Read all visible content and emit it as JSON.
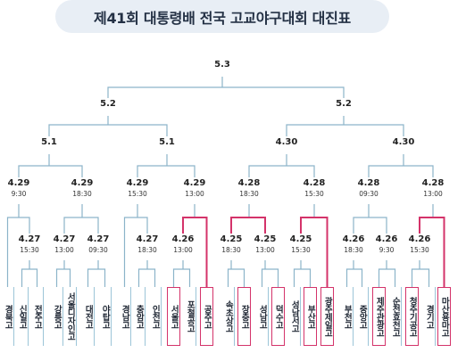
{
  "title": "제41회 대통령배 전국 고교야구대회 대진표",
  "colors": {
    "line": "#8cb4c9",
    "highlight": "#d4336a",
    "title_bg": "#e8eef5"
  },
  "final": {
    "date": "5.3",
    "time": ""
  },
  "semifinals": [
    {
      "date": "5.2",
      "time": ""
    },
    {
      "date": "5.2",
      "time": ""
    }
  ],
  "quarterfinals": [
    {
      "date": "5.1",
      "time": ""
    },
    {
      "date": "5.1",
      "time": ""
    },
    {
      "date": "4.30",
      "time": ""
    },
    {
      "date": "4.30",
      "time": ""
    }
  ],
  "round16": [
    {
      "date": "4.29",
      "time": "9:30"
    },
    {
      "date": "4.29",
      "time": "18:30"
    },
    {
      "date": "4.29",
      "time": "15:30"
    },
    {
      "date": "4.29",
      "time": "13:00"
    },
    {
      "date": "4.28",
      "time": "18:30"
    },
    {
      "date": "4.28",
      "time": "15:30"
    },
    {
      "date": "4.28",
      "time": "09:30"
    },
    {
      "date": "4.28",
      "time": "13:00"
    }
  ],
  "round32": [
    {
      "date": "4.27",
      "time": "15:30"
    },
    {
      "date": "4.27",
      "time": "13:00"
    },
    {
      "date": "4.27",
      "time": "09:30"
    },
    {
      "date": "4.27",
      "time": "18:30"
    },
    {
      "date": "4.26",
      "time": "13:00"
    },
    {
      "date": "4.25",
      "time": "18:30"
    },
    {
      "date": "4.25",
      "time": "13:00"
    },
    {
      "date": "4.25",
      "time": "15:30"
    },
    {
      "date": "4.26",
      "time": "18:30"
    },
    {
      "date": "4.26",
      "time": "9:30"
    },
    {
      "date": "4.26",
      "time": "15:30"
    }
  ],
  "teams": [
    {
      "name": "경북고",
      "highlight": false
    },
    {
      "name": "신일고",
      "highlight": false
    },
    {
      "name": "전주고",
      "highlight": false
    },
    {
      "name": "강릉고",
      "highlight": false
    },
    {
      "name": "서울디자인고",
      "highlight": false
    },
    {
      "name": "대전고",
      "highlight": false
    },
    {
      "name": "야탑고",
      "highlight": false
    },
    {
      "name": "경남고",
      "highlight": false
    },
    {
      "name": "충암고",
      "highlight": false
    },
    {
      "name": "인천고",
      "highlight": false
    },
    {
      "name": "서울고",
      "highlight": true
    },
    {
      "name": "포철공고",
      "highlight": false
    },
    {
      "name": "공주고",
      "highlight": true
    },
    {
      "name": "속초상고",
      "highlight": false
    },
    {
      "name": "장충고",
      "highlight": true
    },
    {
      "name": "성남고",
      "highlight": false
    },
    {
      "name": "덕수고",
      "highlight": true
    },
    {
      "name": "성남서고",
      "highlight": false
    },
    {
      "name": "부산고",
      "highlight": true
    },
    {
      "name": "광주제일고",
      "highlight": true
    },
    {
      "name": "부천고",
      "highlight": false
    },
    {
      "name": "중앙고",
      "highlight": false
    },
    {
      "name": "제주관광고",
      "highlight": true
    },
    {
      "name": "순천효천고",
      "highlight": false
    },
    {
      "name": "청주기공고",
      "highlight": true
    },
    {
      "name": "경기고",
      "highlight": false
    },
    {
      "name": "마산용마고",
      "highlight": true
    }
  ]
}
